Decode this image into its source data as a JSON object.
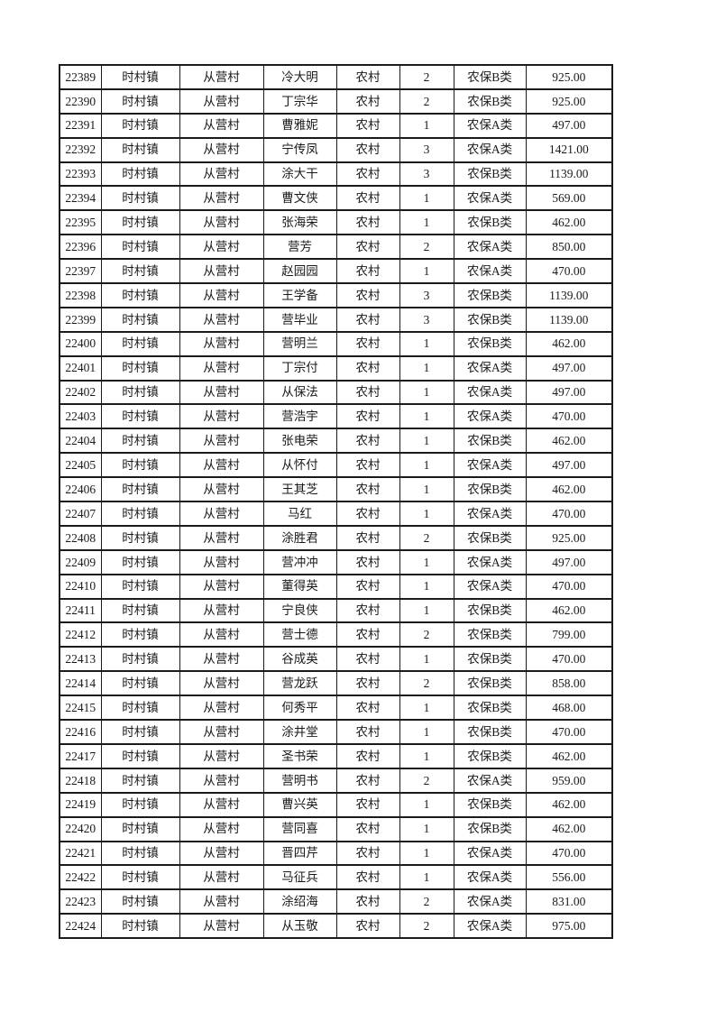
{
  "page": {
    "background_color": "#ffffff",
    "text_color": "#1a1a1a",
    "border_color": "#1a1a1a"
  },
  "table": {
    "rows": [
      [
        "22389",
        "时村镇",
        "从营村",
        "冷大明",
        "农村",
        "2",
        "农保B类",
        "925.00"
      ],
      [
        "22390",
        "时村镇",
        "从营村",
        "丁宗华",
        "农村",
        "2",
        "农保B类",
        "925.00"
      ],
      [
        "22391",
        "时村镇",
        "从营村",
        "曹雅妮",
        "农村",
        "1",
        "农保A类",
        "497.00"
      ],
      [
        "22392",
        "时村镇",
        "从营村",
        "宁传凤",
        "农村",
        "3",
        "农保A类",
        "1421.00"
      ],
      [
        "22393",
        "时村镇",
        "从营村",
        "涂大干",
        "农村",
        "3",
        "农保B类",
        "1139.00"
      ],
      [
        "22394",
        "时村镇",
        "从营村",
        "曹文侠",
        "农村",
        "1",
        "农保A类",
        "569.00"
      ],
      [
        "22395",
        "时村镇",
        "从营村",
        "张海荣",
        "农村",
        "1",
        "农保B类",
        "462.00"
      ],
      [
        "22396",
        "时村镇",
        "从营村",
        "营芳",
        "农村",
        "2",
        "农保A类",
        "850.00"
      ],
      [
        "22397",
        "时村镇",
        "从营村",
        "赵园园",
        "农村",
        "1",
        "农保A类",
        "470.00"
      ],
      [
        "22398",
        "时村镇",
        "从营村",
        "王学备",
        "农村",
        "3",
        "农保B类",
        "1139.00"
      ],
      [
        "22399",
        "时村镇",
        "从营村",
        "营毕业",
        "农村",
        "3",
        "农保B类",
        "1139.00"
      ],
      [
        "22400",
        "时村镇",
        "从营村",
        "营明兰",
        "农村",
        "1",
        "农保B类",
        "462.00"
      ],
      [
        "22401",
        "时村镇",
        "从营村",
        "丁宗付",
        "农村",
        "1",
        "农保A类",
        "497.00"
      ],
      [
        "22402",
        "时村镇",
        "从营村",
        "从保法",
        "农村",
        "1",
        "农保A类",
        "497.00"
      ],
      [
        "22403",
        "时村镇",
        "从营村",
        "营浩宇",
        "农村",
        "1",
        "农保A类",
        "470.00"
      ],
      [
        "22404",
        "时村镇",
        "从营村",
        "张电荣",
        "农村",
        "1",
        "农保B类",
        "462.00"
      ],
      [
        "22405",
        "时村镇",
        "从营村",
        "从怀付",
        "农村",
        "1",
        "农保A类",
        "497.00"
      ],
      [
        "22406",
        "时村镇",
        "从营村",
        "王其芝",
        "农村",
        "1",
        "农保B类",
        "462.00"
      ],
      [
        "22407",
        "时村镇",
        "从营村",
        "马红",
        "农村",
        "1",
        "农保A类",
        "470.00"
      ],
      [
        "22408",
        "时村镇",
        "从营村",
        "涂胜君",
        "农村",
        "2",
        "农保B类",
        "925.00"
      ],
      [
        "22409",
        "时村镇",
        "从营村",
        "营冲冲",
        "农村",
        "1",
        "农保A类",
        "497.00"
      ],
      [
        "22410",
        "时村镇",
        "从营村",
        "董得英",
        "农村",
        "1",
        "农保A类",
        "470.00"
      ],
      [
        "22411",
        "时村镇",
        "从营村",
        "宁良侠",
        "农村",
        "1",
        "农保B类",
        "462.00"
      ],
      [
        "22412",
        "时村镇",
        "从营村",
        "营士德",
        "农村",
        "2",
        "农保B类",
        "799.00"
      ],
      [
        "22413",
        "时村镇",
        "从营村",
        "谷成英",
        "农村",
        "1",
        "农保B类",
        "470.00"
      ],
      [
        "22414",
        "时村镇",
        "从营村",
        "营龙跃",
        "农村",
        "2",
        "农保B类",
        "858.00"
      ],
      [
        "22415",
        "时村镇",
        "从营村",
        "何秀平",
        "农村",
        "1",
        "农保B类",
        "468.00"
      ],
      [
        "22416",
        "时村镇",
        "从营村",
        "涂井堂",
        "农村",
        "1",
        "农保B类",
        "470.00"
      ],
      [
        "22417",
        "时村镇",
        "从营村",
        "圣书荣",
        "农村",
        "1",
        "农保B类",
        "462.00"
      ],
      [
        "22418",
        "时村镇",
        "从营村",
        "营明书",
        "农村",
        "2",
        "农保A类",
        "959.00"
      ],
      [
        "22419",
        "时村镇",
        "从营村",
        "曹兴英",
        "农村",
        "1",
        "农保B类",
        "462.00"
      ],
      [
        "22420",
        "时村镇",
        "从营村",
        "营同喜",
        "农村",
        "1",
        "农保B类",
        "462.00"
      ],
      [
        "22421",
        "时村镇",
        "从营村",
        "晋四芹",
        "农村",
        "1",
        "农保A类",
        "470.00"
      ],
      [
        "22422",
        "时村镇",
        "从营村",
        "马征兵",
        "农村",
        "1",
        "农保A类",
        "556.00"
      ],
      [
        "22423",
        "时村镇",
        "从营村",
        "涂绍海",
        "农村",
        "2",
        "农保A类",
        "831.00"
      ],
      [
        "22424",
        "时村镇",
        "从营村",
        "从玉敬",
        "农村",
        "2",
        "农保A类",
        "975.00"
      ]
    ]
  }
}
